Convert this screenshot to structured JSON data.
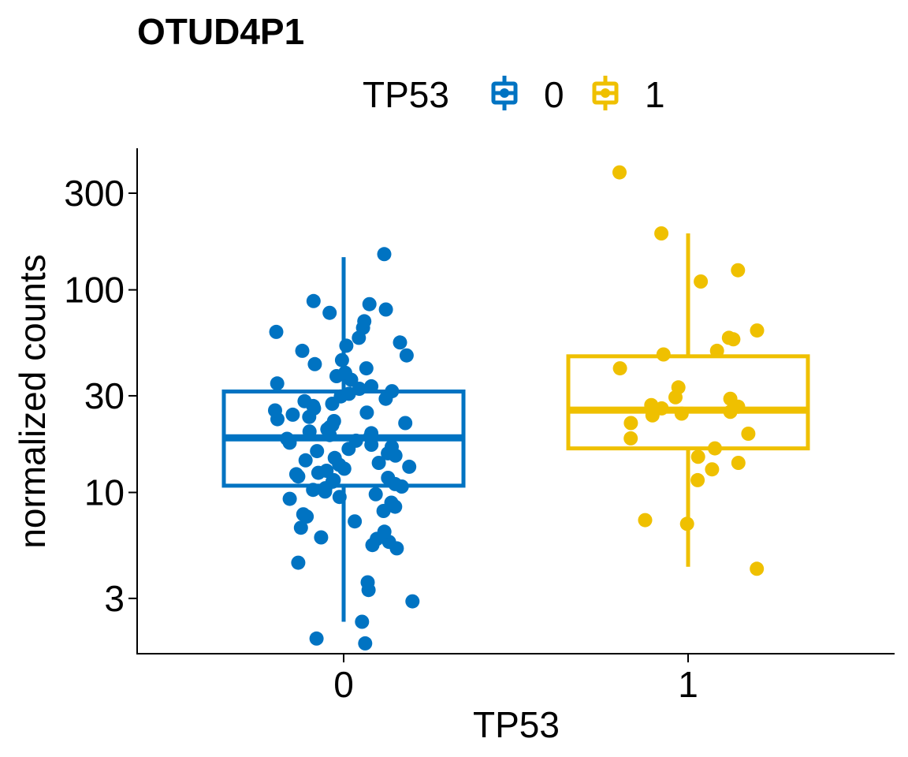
{
  "colors": {
    "group_0": "#0073C2",
    "group_1": "#EFC000",
    "axis": "#000000"
  },
  "legend": {
    "title": "TP53",
    "labels": [
      "0",
      "1"
    ]
  },
  "chart_data": {
    "type": "box",
    "title": "OTUD4P1",
    "xlabel": "TP53",
    "ylabel": "normalized counts",
    "y_scale": "log10",
    "ylim": [
      1.6,
      500
    ],
    "y_ticks": [
      3,
      10,
      30,
      100,
      300
    ],
    "y_tick_labels": [
      "3",
      "10",
      "30",
      "100",
      "300"
    ],
    "categories": [
      "0",
      "1"
    ],
    "legend_position": "top",
    "grid": false,
    "boxes": [
      {
        "group": "0",
        "whisker_low": 2.3,
        "q1": 10.8,
        "median": 18.6,
        "q3": 31.5,
        "whisker_high": 145
      },
      {
        "group": "1",
        "whisker_low": 4.3,
        "q1": 16.5,
        "median": 25.5,
        "q3": 47,
        "whisker_high": 190
      }
    ],
    "points": [
      {
        "group": "0",
        "values": [
          1.8,
          1.9,
          2.3,
          2.9,
          3.3,
          3.6,
          4.5,
          5.3,
          5.5,
          5.7,
          5.9,
          6.0,
          6.4,
          6.7,
          7.2,
          7.6,
          7.8,
          8.1,
          8.5,
          8.9,
          9.3,
          9.5,
          9.8,
          10.1,
          10.3,
          10.5,
          10.7,
          11.0,
          11.3,
          11.5,
          11.8,
          12.0,
          12.3,
          12.5,
          12.8,
          13.1,
          13.4,
          13.7,
          14.0,
          14.4,
          14.8,
          15.2,
          15.6,
          16.0,
          16.4,
          16.8,
          17.2,
          17.6,
          18.0,
          18.4,
          18.8,
          19.2,
          19.6,
          20.0,
          20.5,
          21.0,
          21.5,
          22.0,
          22.5,
          23.0,
          23.6,
          24.2,
          24.8,
          25.4,
          26.0,
          26.7,
          27.4,
          28.2,
          29.0,
          29.8,
          30.7,
          31.6,
          32.5,
          33.4,
          34.5,
          36.0,
          37.5,
          39.0,
          41.0,
          43.0,
          45.0,
          47.5,
          50.0,
          53.0,
          55.0,
          58.0,
          62.0,
          65.0,
          70.0,
          77.0,
          80.0,
          85.0,
          88.0,
          150.0
        ]
      },
      {
        "group": "1",
        "values": [
          4.2,
          7.0,
          7.3,
          11.5,
          13.0,
          14.0,
          15.0,
          16.5,
          18.5,
          19.5,
          22.0,
          24.0,
          24.5,
          25.0,
          26.0,
          26.5,
          27.0,
          29.0,
          29.5,
          33.0,
          41.0,
          48.0,
          50.0,
          57.0,
          58.0,
          63.0,
          110.0,
          125.0,
          190.0,
          380.0
        ]
      }
    ]
  }
}
